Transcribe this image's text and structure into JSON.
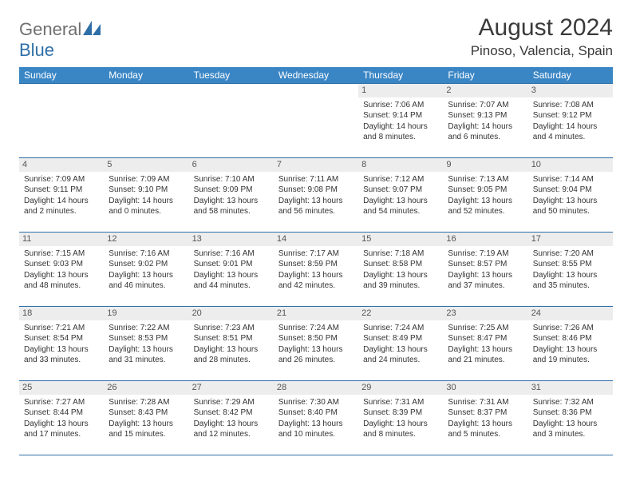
{
  "brand": {
    "part1": "General",
    "part2": "Blue"
  },
  "title": "August 2024",
  "location": "Pinoso, Valencia, Spain",
  "colors": {
    "header_bg": "#3a86c5",
    "border": "#2f6fa8",
    "daynum_bg": "#ededed",
    "text": "#333333"
  },
  "day_names": [
    "Sunday",
    "Monday",
    "Tuesday",
    "Wednesday",
    "Thursday",
    "Friday",
    "Saturday"
  ],
  "weeks": [
    [
      null,
      null,
      null,
      null,
      {
        "n": 1,
        "sunrise": "7:06 AM",
        "sunset": "9:14 PM",
        "daylight": "14 hours and 8 minutes."
      },
      {
        "n": 2,
        "sunrise": "7:07 AM",
        "sunset": "9:13 PM",
        "daylight": "14 hours and 6 minutes."
      },
      {
        "n": 3,
        "sunrise": "7:08 AM",
        "sunset": "9:12 PM",
        "daylight": "14 hours and 4 minutes."
      }
    ],
    [
      {
        "n": 4,
        "sunrise": "7:09 AM",
        "sunset": "9:11 PM",
        "daylight": "14 hours and 2 minutes."
      },
      {
        "n": 5,
        "sunrise": "7:09 AM",
        "sunset": "9:10 PM",
        "daylight": "14 hours and 0 minutes."
      },
      {
        "n": 6,
        "sunrise": "7:10 AM",
        "sunset": "9:09 PM",
        "daylight": "13 hours and 58 minutes."
      },
      {
        "n": 7,
        "sunrise": "7:11 AM",
        "sunset": "9:08 PM",
        "daylight": "13 hours and 56 minutes."
      },
      {
        "n": 8,
        "sunrise": "7:12 AM",
        "sunset": "9:07 PM",
        "daylight": "13 hours and 54 minutes."
      },
      {
        "n": 9,
        "sunrise": "7:13 AM",
        "sunset": "9:05 PM",
        "daylight": "13 hours and 52 minutes."
      },
      {
        "n": 10,
        "sunrise": "7:14 AM",
        "sunset": "9:04 PM",
        "daylight": "13 hours and 50 minutes."
      }
    ],
    [
      {
        "n": 11,
        "sunrise": "7:15 AM",
        "sunset": "9:03 PM",
        "daylight": "13 hours and 48 minutes."
      },
      {
        "n": 12,
        "sunrise": "7:16 AM",
        "sunset": "9:02 PM",
        "daylight": "13 hours and 46 minutes."
      },
      {
        "n": 13,
        "sunrise": "7:16 AM",
        "sunset": "9:01 PM",
        "daylight": "13 hours and 44 minutes."
      },
      {
        "n": 14,
        "sunrise": "7:17 AM",
        "sunset": "8:59 PM",
        "daylight": "13 hours and 42 minutes."
      },
      {
        "n": 15,
        "sunrise": "7:18 AM",
        "sunset": "8:58 PM",
        "daylight": "13 hours and 39 minutes."
      },
      {
        "n": 16,
        "sunrise": "7:19 AM",
        "sunset": "8:57 PM",
        "daylight": "13 hours and 37 minutes."
      },
      {
        "n": 17,
        "sunrise": "7:20 AM",
        "sunset": "8:55 PM",
        "daylight": "13 hours and 35 minutes."
      }
    ],
    [
      {
        "n": 18,
        "sunrise": "7:21 AM",
        "sunset": "8:54 PM",
        "daylight": "13 hours and 33 minutes."
      },
      {
        "n": 19,
        "sunrise": "7:22 AM",
        "sunset": "8:53 PM",
        "daylight": "13 hours and 31 minutes."
      },
      {
        "n": 20,
        "sunrise": "7:23 AM",
        "sunset": "8:51 PM",
        "daylight": "13 hours and 28 minutes."
      },
      {
        "n": 21,
        "sunrise": "7:24 AM",
        "sunset": "8:50 PM",
        "daylight": "13 hours and 26 minutes."
      },
      {
        "n": 22,
        "sunrise": "7:24 AM",
        "sunset": "8:49 PM",
        "daylight": "13 hours and 24 minutes."
      },
      {
        "n": 23,
        "sunrise": "7:25 AM",
        "sunset": "8:47 PM",
        "daylight": "13 hours and 21 minutes."
      },
      {
        "n": 24,
        "sunrise": "7:26 AM",
        "sunset": "8:46 PM",
        "daylight": "13 hours and 19 minutes."
      }
    ],
    [
      {
        "n": 25,
        "sunrise": "7:27 AM",
        "sunset": "8:44 PM",
        "daylight": "13 hours and 17 minutes."
      },
      {
        "n": 26,
        "sunrise": "7:28 AM",
        "sunset": "8:43 PM",
        "daylight": "13 hours and 15 minutes."
      },
      {
        "n": 27,
        "sunrise": "7:29 AM",
        "sunset": "8:42 PM",
        "daylight": "13 hours and 12 minutes."
      },
      {
        "n": 28,
        "sunrise": "7:30 AM",
        "sunset": "8:40 PM",
        "daylight": "13 hours and 10 minutes."
      },
      {
        "n": 29,
        "sunrise": "7:31 AM",
        "sunset": "8:39 PM",
        "daylight": "13 hours and 8 minutes."
      },
      {
        "n": 30,
        "sunrise": "7:31 AM",
        "sunset": "8:37 PM",
        "daylight": "13 hours and 5 minutes."
      },
      {
        "n": 31,
        "sunrise": "7:32 AM",
        "sunset": "8:36 PM",
        "daylight": "13 hours and 3 minutes."
      }
    ]
  ],
  "labels": {
    "sunrise": "Sunrise:",
    "sunset": "Sunset:",
    "daylight": "Daylight:"
  }
}
